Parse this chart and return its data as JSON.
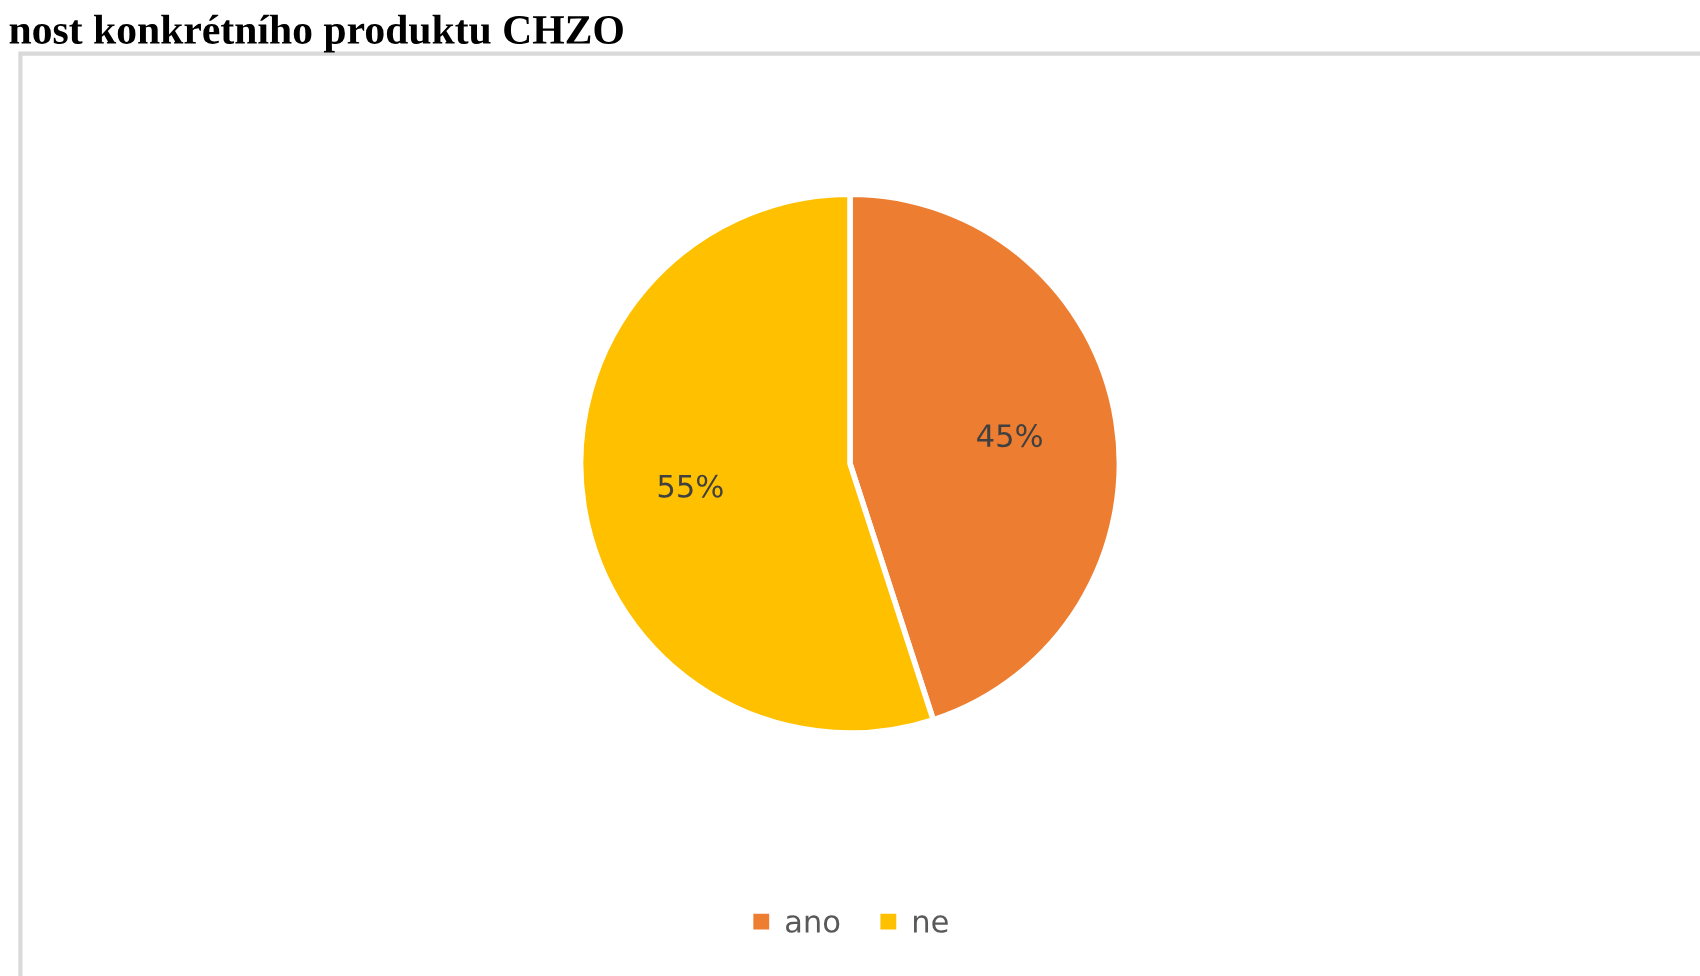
{
  "chart_data": {
    "type": "pie",
    "title": "nost konkrétního produktu CHZO",
    "categories": [
      "ano",
      "ne"
    ],
    "values": [
      45,
      55
    ],
    "value_labels": [
      "45%",
      "55%"
    ],
    "colors": [
      "#ed7d31",
      "#ffc000"
    ],
    "legend": "bottom"
  }
}
